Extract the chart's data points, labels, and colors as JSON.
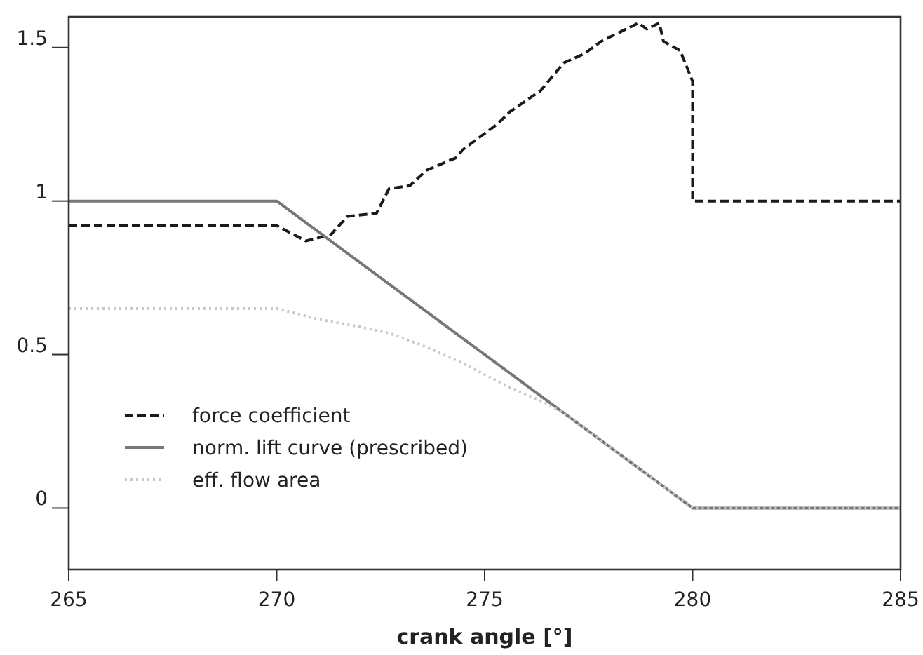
{
  "chart_data": {
    "type": "line",
    "xlabel": "crank angle [°]",
    "xlim": [
      265,
      285
    ],
    "xticks": [
      265,
      270,
      275,
      280,
      285
    ],
    "ylim": [
      -0.2,
      1.6
    ],
    "yticks": [
      0,
      0.5,
      1,
      1.5
    ],
    "grid": false,
    "legend": "bottom left",
    "series": [
      {
        "name": "force coefficient",
        "color": "#1a1a1a",
        "line_style": "dashed",
        "x": [
          265,
          270,
          270.7,
          271.3,
          271.7,
          272.4,
          272.7,
          273.2,
          273.6,
          274.3,
          274.5,
          275.3,
          275.6,
          276.35,
          276.9,
          277.4,
          277.8,
          278.7,
          278.9,
          279.2,
          279.3,
          279.7,
          280,
          280,
          285
        ],
        "values": [
          0.92,
          0.92,
          0.87,
          0.89,
          0.95,
          0.96,
          1.04,
          1.05,
          1.1,
          1.14,
          1.17,
          1.25,
          1.29,
          1.36,
          1.45,
          1.48,
          1.52,
          1.58,
          1.56,
          1.58,
          1.52,
          1.49,
          1.39,
          1,
          1
        ]
      },
      {
        "name": "norm. lift curve (prescribed)",
        "color": "#777777",
        "line_style": "solid",
        "x": [
          265,
          270,
          280,
          285
        ],
        "values": [
          1,
          1,
          0,
          0
        ]
      },
      {
        "name": "eff. flow area",
        "color": "#c8c8c8",
        "line_style": "dotted",
        "x": [
          265,
          270,
          271,
          272,
          272.7,
          273.5,
          274.5,
          275.5,
          276.5,
          277,
          278,
          279,
          280,
          285
        ],
        "values": [
          0.65,
          0.65,
          0.615,
          0.59,
          0.57,
          0.53,
          0.47,
          0.4,
          0.34,
          0.3,
          0.2,
          0.1,
          0,
          0
        ]
      }
    ]
  }
}
